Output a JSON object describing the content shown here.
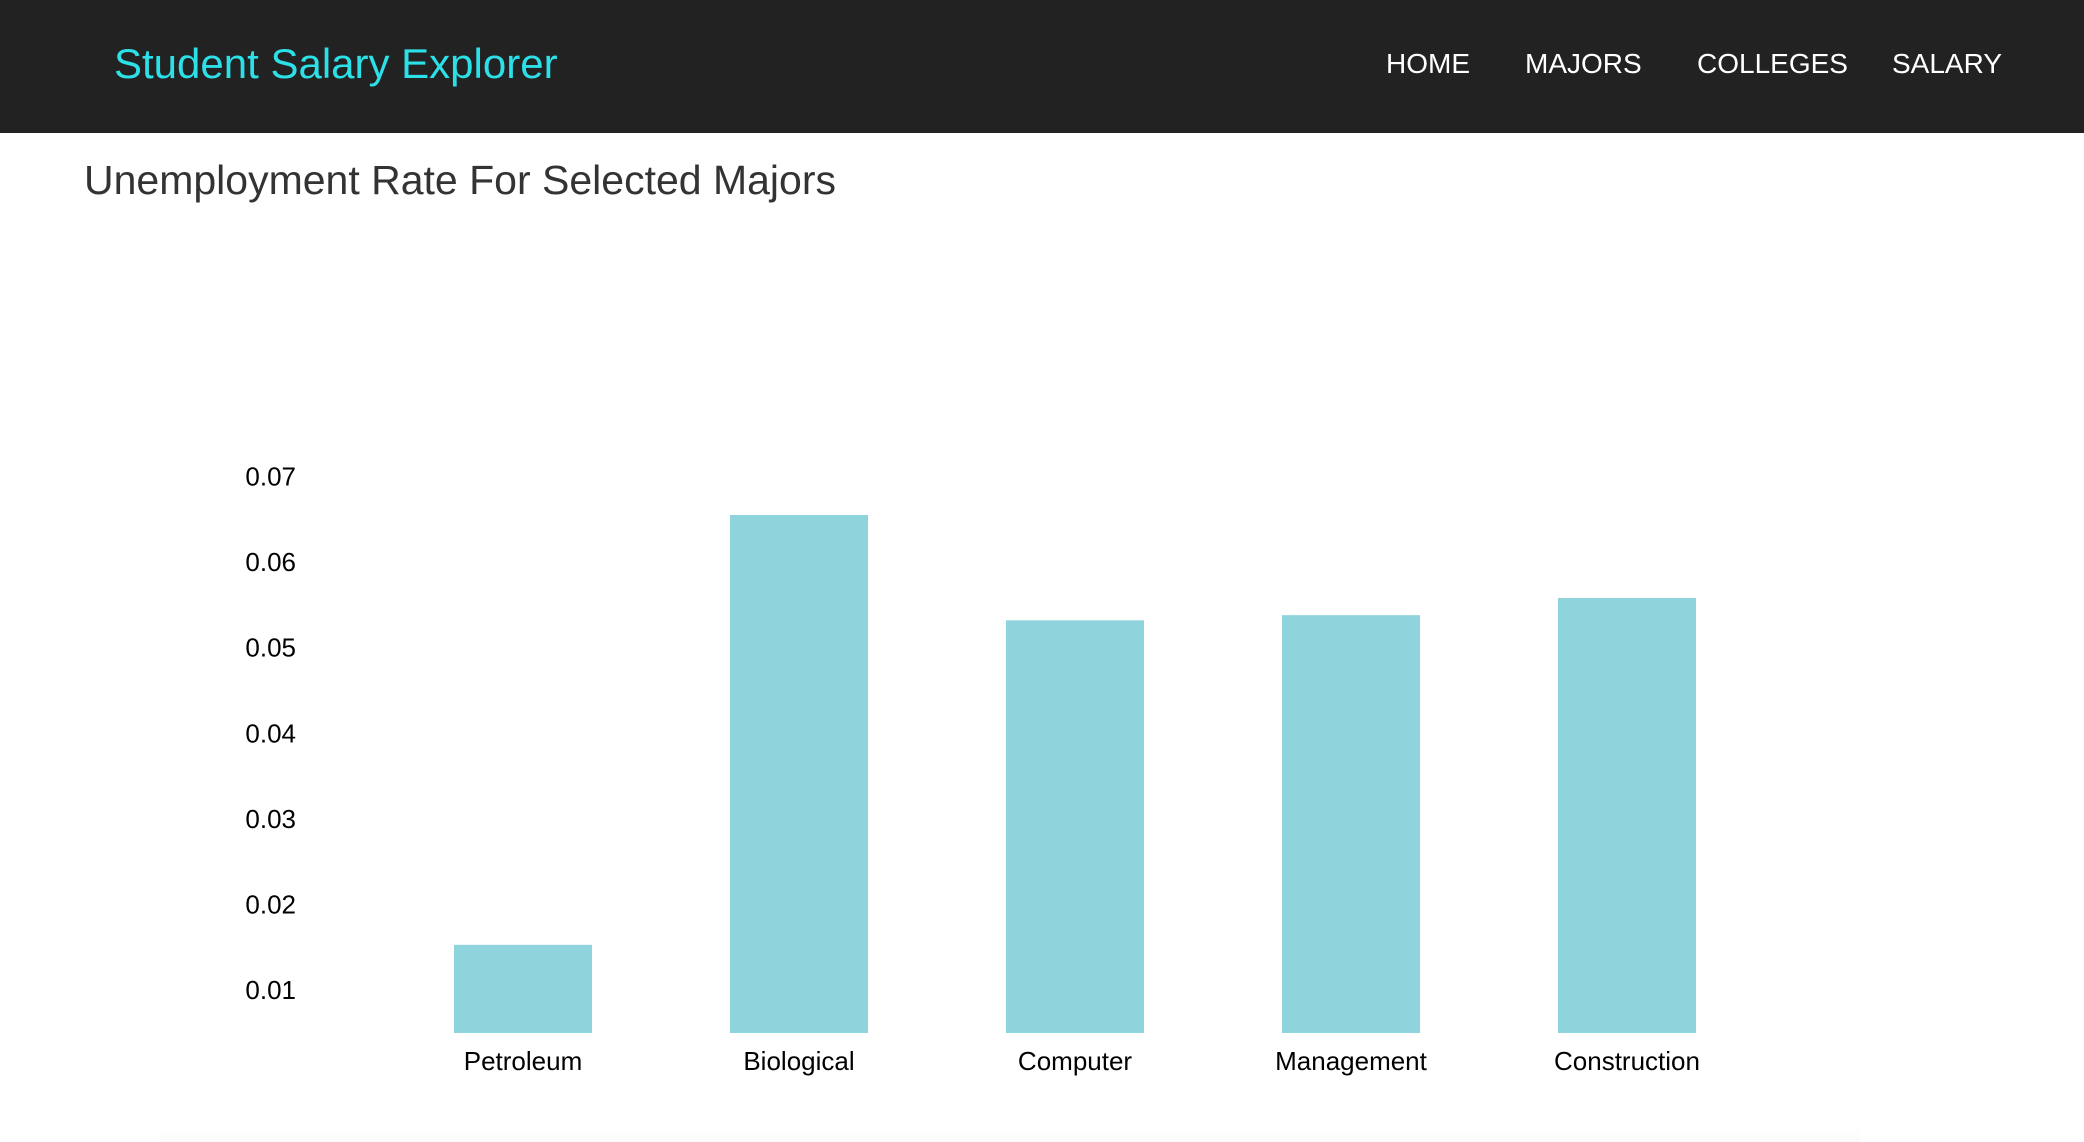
{
  "navbar": {
    "brand": "Student Salary Explorer",
    "links": [
      "HOME",
      "MAJORS",
      "COLLEGES",
      "SALARY"
    ],
    "background_color": "#222222",
    "brand_color": "#2ce0e8"
  },
  "page": {
    "title": "Unemployment Rate For Selected Majors"
  },
  "chart_data": {
    "type": "bar",
    "title": "Unemployment Rate For Selected Majors",
    "xlabel": "",
    "ylabel": "",
    "categories": [
      "Petroleum",
      "Biological",
      "Computer",
      "Management",
      "Construction"
    ],
    "values": [
      0.0153,
      0.0655,
      0.0532,
      0.0538,
      0.0558
    ],
    "ylim": [
      0.005,
      0.07
    ],
    "yticks": [
      "0.01",
      "0.02",
      "0.03",
      "0.04",
      "0.05",
      "0.06",
      "0.07"
    ],
    "ytick_values": [
      0.01,
      0.02,
      0.03,
      0.04,
      0.05,
      0.06,
      0.07
    ],
    "grid": false,
    "bar_color": "#8fd3dc"
  }
}
